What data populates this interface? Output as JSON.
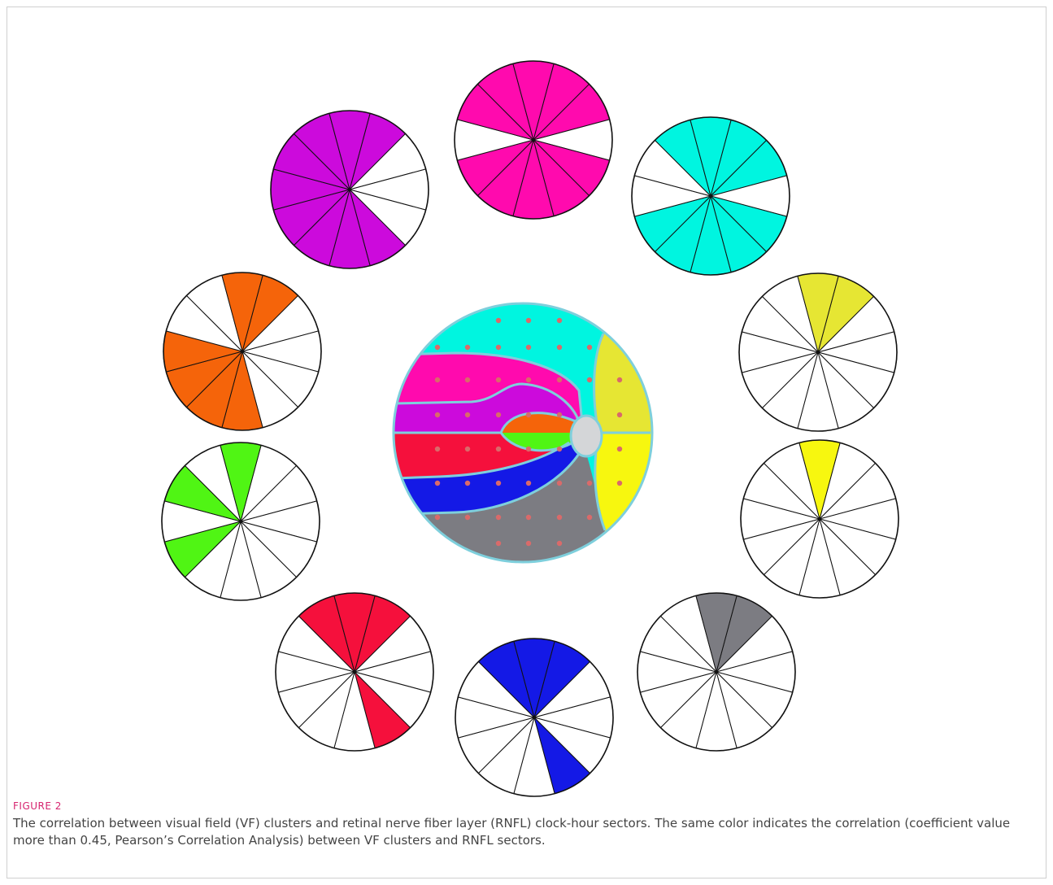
{
  "figure": {
    "label": "FIGURE 2",
    "caption": "The correlation between visual field (VF) clusters and retinal nerve fiber layer (RNFL) clock-hour sectors. The same color indicates the correlation (coefficient value more than 0.45, Pearson’s Correlation Analysis) between VF clusters and RNFL sectors."
  },
  "colors": {
    "magenta": "#ff0aae",
    "cyan": "#00f5e0",
    "yellow_green": "#e6e633",
    "yellow": "#f7f70f",
    "gray": "#7c7c82",
    "blue": "#1419e6",
    "red": "#f5103c",
    "green": "#50f514",
    "orange": "#f5640a",
    "purple": "#cc0adc",
    "disc": "#d4d6d8",
    "outline": "#7ecfdc",
    "dot": "#d96a6a"
  },
  "clock_wheels": [
    {
      "cluster": "magenta",
      "colored_hours": [
        10,
        11,
        12,
        1,
        2,
        4,
        5,
        6,
        7,
        8
      ]
    },
    {
      "cluster": "cyan",
      "colored_hours": [
        11,
        12,
        1,
        2,
        4,
        5,
        6,
        7,
        8
      ]
    },
    {
      "cluster": "yellow_green",
      "colored_hours": [
        12,
        1
      ]
    },
    {
      "cluster": "yellow",
      "colored_hours": [
        12
      ]
    },
    {
      "cluster": "gray",
      "colored_hours": [
        12,
        1
      ]
    },
    {
      "cluster": "blue",
      "colored_hours": [
        11,
        12,
        1,
        5
      ]
    },
    {
      "cluster": "red",
      "colored_hours": [
        11,
        12,
        1,
        5
      ]
    },
    {
      "cluster": "green",
      "colored_hours": [
        12,
        8,
        10
      ]
    },
    {
      "cluster": "orange",
      "colored_hours": [
        12,
        1,
        6,
        7,
        8,
        9
      ]
    },
    {
      "cluster": "purple",
      "colored_hours": [
        11,
        12,
        1,
        5,
        6,
        7,
        8,
        9,
        10
      ]
    }
  ]
}
